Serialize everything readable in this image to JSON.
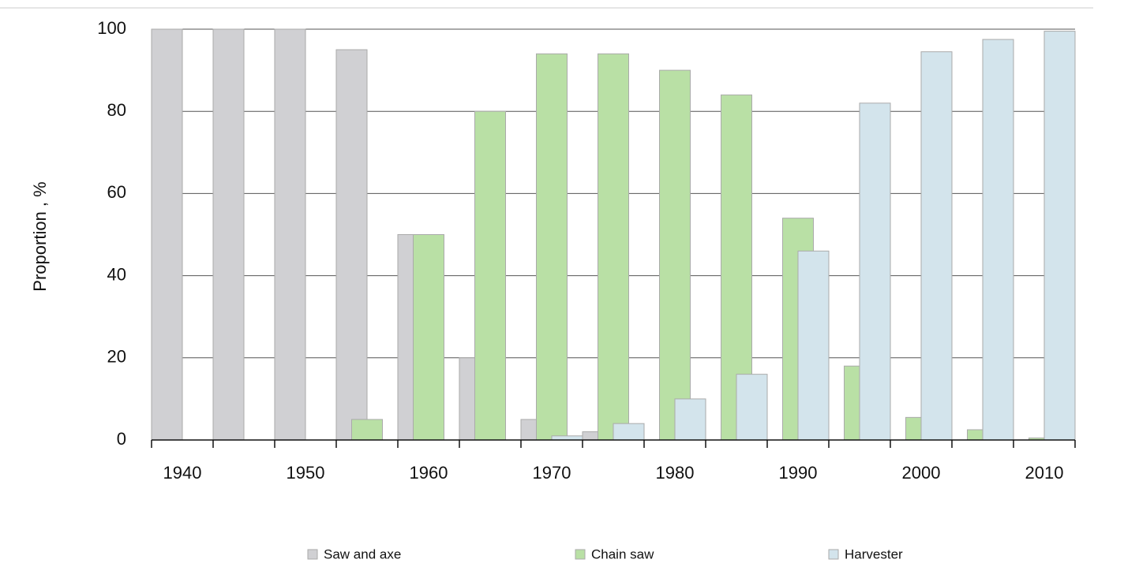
{
  "chart_data": {
    "type": "bar",
    "y_label": "Proportion , %",
    "categories": [
      "1940",
      null,
      "1950",
      null,
      "1960",
      null,
      "1970",
      null,
      "1980",
      null,
      "1990",
      null,
      "2000",
      null,
      "2010"
    ],
    "series": [
      {
        "name": "Saw and axe",
        "color": "#d0d0d3",
        "values": [
          100,
          100,
          100,
          95,
          50,
          20,
          5,
          2,
          0,
          0,
          0,
          0,
          0,
          0,
          0
        ]
      },
      {
        "name": "Chain saw",
        "color": "#b9e0a5",
        "values": [
          0,
          0,
          0,
          5,
          50,
          80,
          94,
          94,
          90,
          84,
          54,
          18,
          5.5,
          2.5,
          0.5
        ]
      },
      {
        "name": "Harvester",
        "color": "#d3e4ec",
        "values": [
          0,
          0,
          0,
          0,
          0,
          0,
          1,
          4,
          10,
          16,
          46,
          82,
          94.5,
          97.5,
          99.5
        ]
      }
    ],
    "ylim": [
      0,
      100
    ],
    "yticks": [
      0,
      20,
      40,
      60,
      80,
      100
    ],
    "grid": true
  }
}
